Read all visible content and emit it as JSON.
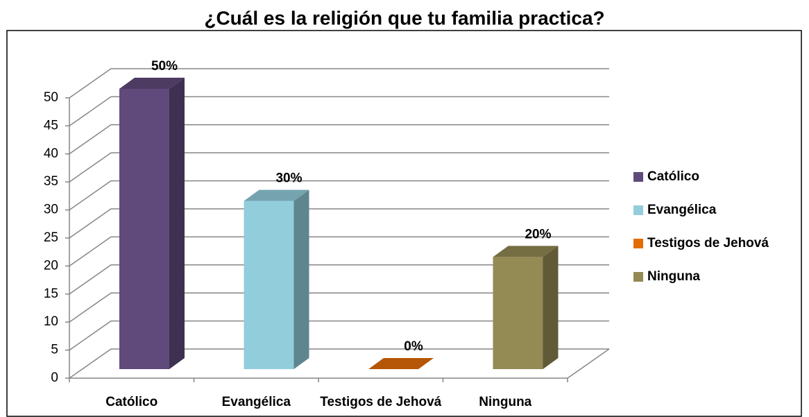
{
  "chart_data": {
    "type": "bar3d",
    "title": "¿Cuál es la religión que tu familia practica?",
    "categories": [
      "Católico",
      "Evangélica",
      "Testigos de Jehová",
      "Ninguna"
    ],
    "values": [
      50,
      30,
      0,
      20
    ],
    "value_labels": [
      "50%",
      "30%",
      "0%",
      "20%"
    ],
    "colors": [
      "#604a7b",
      "#92cddc",
      "#e36c09",
      "#948a54"
    ],
    "ylim": [
      0,
      50
    ],
    "yticks": [
      0,
      5,
      10,
      15,
      20,
      25,
      30,
      35,
      40,
      45,
      50
    ],
    "grid": true,
    "legend": "right"
  }
}
